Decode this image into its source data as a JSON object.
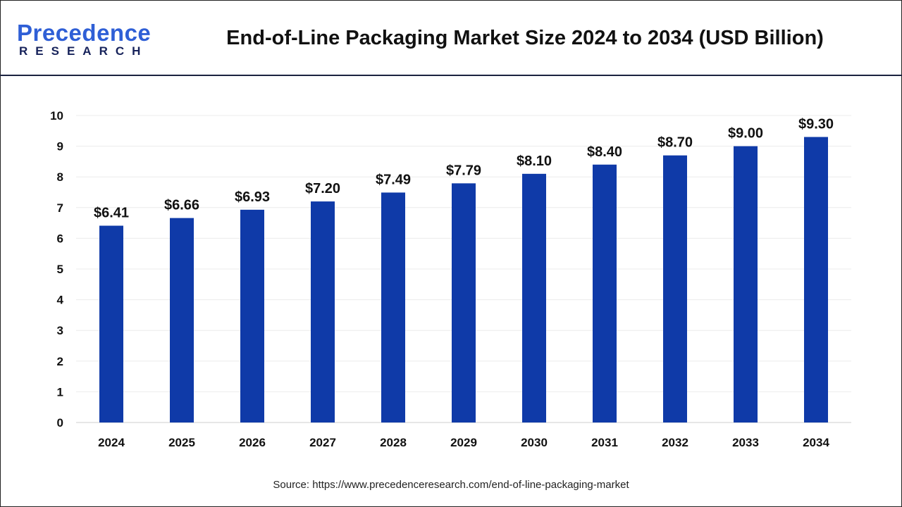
{
  "header": {
    "logo_text": "Precedence",
    "logo_subtext": "RESEARCH",
    "title": "End-of-Line Packaging Market Size 2024 to 2034 (USD Billion)"
  },
  "source": "Source: https://www.precedenceresearch.com/end-of-line-packaging-market",
  "chart_data": {
    "type": "bar",
    "title": "End-of-Line Packaging Market Size 2024 to 2034 (USD Billion)",
    "categories": [
      "2024",
      "2025",
      "2026",
      "2027",
      "2028",
      "2029",
      "2030",
      "2031",
      "2032",
      "2033",
      "2034"
    ],
    "values": [
      6.41,
      6.66,
      6.93,
      7.2,
      7.49,
      7.79,
      8.1,
      8.4,
      8.7,
      9.0,
      9.3
    ],
    "data_labels": [
      "$6.41",
      "$6.66",
      "$6.93",
      "$7.20",
      "$7.49",
      "$7.79",
      "$8.10",
      "$8.40",
      "$8.70",
      "$9.00",
      "$9.30"
    ],
    "yticks": [
      0,
      1,
      2,
      3,
      4,
      5,
      6,
      7,
      8,
      9,
      10
    ],
    "ylim": [
      0,
      10
    ],
    "xlabel": "",
    "ylabel": "",
    "grid": true,
    "bar_color": "#0f3aa8"
  }
}
